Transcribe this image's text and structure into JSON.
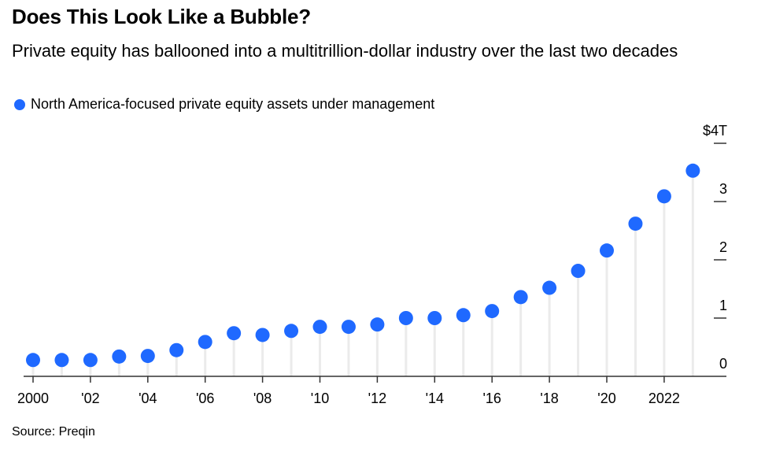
{
  "title": "Does This Look Like a Bubble?",
  "subtitle": "Private equity has ballooned into a multitrillion-dollar industry over the last two decades",
  "source": "Source: Preqin",
  "colors": {
    "series": "#1F69FF",
    "stem": "#EBEBEB",
    "axis": "#333333"
  },
  "chart_data": {
    "type": "lollipop",
    "title": "Does This Look Like a Bubble?",
    "subtitle": "Private equity has ballooned into a multitrillion-dollar industry over the last two decades",
    "xlabel": "",
    "ylabel": "",
    "ylim": [
      0,
      4
    ],
    "y_ticks": [
      0,
      1,
      2,
      3,
      4
    ],
    "y_tick_labels": [
      "0",
      "1",
      "2",
      "3",
      "$4T"
    ],
    "y_axis_position": "right",
    "grid": false,
    "legend_position": "top-left",
    "x": [
      2000,
      2001,
      2002,
      2003,
      2004,
      2005,
      2006,
      2007,
      2008,
      2009,
      2010,
      2011,
      2012,
      2013,
      2014,
      2015,
      2016,
      2017,
      2018,
      2019,
      2020,
      2021,
      2022,
      2023
    ],
    "x_ticks": [
      2000,
      2002,
      2004,
      2006,
      2008,
      2010,
      2012,
      2014,
      2016,
      2018,
      2020,
      2022
    ],
    "x_tick_labels": [
      "2000",
      "'02",
      "'04",
      "'06",
      "'08",
      "'10",
      "'12",
      "'14",
      "'16",
      "'18",
      "'20",
      "2022"
    ],
    "series": [
      {
        "name": "North America-focused private equity assets under management",
        "unit": "trillion USD",
        "values": [
          0.28,
          0.28,
          0.28,
          0.34,
          0.35,
          0.45,
          0.59,
          0.74,
          0.71,
          0.78,
          0.85,
          0.85,
          0.89,
          1.0,
          1.0,
          1.05,
          1.12,
          1.36,
          1.52,
          1.81,
          2.16,
          2.62,
          3.09,
          3.53
        ]
      }
    ]
  }
}
